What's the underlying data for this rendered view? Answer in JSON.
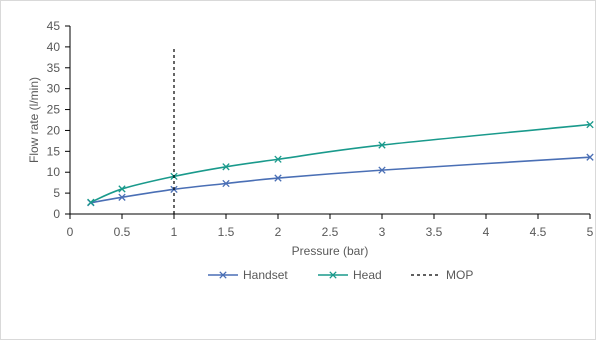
{
  "chart_data": {
    "type": "line",
    "xlabel": "Pressure (bar)",
    "ylabel": "Flow rate (l/min)",
    "xlim": [
      0,
      5
    ],
    "ylim": [
      0,
      45
    ],
    "x_ticks": [
      "0",
      "0.5",
      "1",
      "1.5",
      "2",
      "2.5",
      "3",
      "3.5",
      "4",
      "4.5",
      "5"
    ],
    "y_ticks": [
      "0",
      "5",
      "10",
      "15",
      "20",
      "25",
      "30",
      "35",
      "40",
      "45"
    ],
    "grid": false,
    "legend_position": "bottom",
    "series": [
      {
        "name": "Handset",
        "color": "#4a6fb5",
        "marker": "x",
        "x": [
          0.2,
          0.5,
          1,
          1.5,
          2,
          3,
          5
        ],
        "y": [
          2.7,
          4.0,
          5.9,
          7.3,
          8.6,
          10.5,
          13.6
        ]
      },
      {
        "name": "Head",
        "color": "#1a9a8c",
        "marker": "x",
        "x": [
          0.2,
          0.5,
          1,
          1.5,
          2,
          3,
          5
        ],
        "y": [
          2.8,
          6.0,
          9.0,
          11.3,
          13.1,
          16.5,
          21.4
        ]
      },
      {
        "name": "MOP",
        "color": "#000000",
        "style": "dashed",
        "x": [
          1,
          1
        ],
        "y": [
          0,
          40
        ]
      }
    ]
  }
}
